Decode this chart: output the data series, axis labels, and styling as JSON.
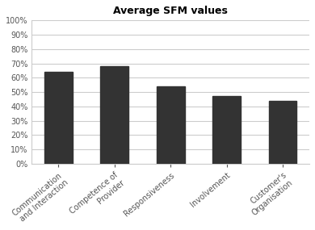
{
  "title": "Average SFM values",
  "categories": [
    "Communication\nand Interaction",
    "Competence of\nProvider",
    "Responsiveness",
    "Involvement",
    "Customer's\nOrganisation"
  ],
  "values": [
    0.64,
    0.68,
    0.54,
    0.47,
    0.44
  ],
  "bar_color": "#333333",
  "ylim": [
    0,
    1.0
  ],
  "yticks": [
    0.0,
    0.1,
    0.2,
    0.3,
    0.4,
    0.5,
    0.6,
    0.7,
    0.8,
    0.9,
    1.0
  ],
  "ytick_labels": [
    "0%",
    "10%",
    "20%",
    "30%",
    "40%",
    "50%",
    "60%",
    "70%",
    "80%",
    "90%",
    "100%"
  ],
  "background_color": "#ffffff",
  "grid_color": "#cccccc",
  "title_fontsize": 9,
  "tick_fontsize": 7,
  "bar_width": 0.5
}
